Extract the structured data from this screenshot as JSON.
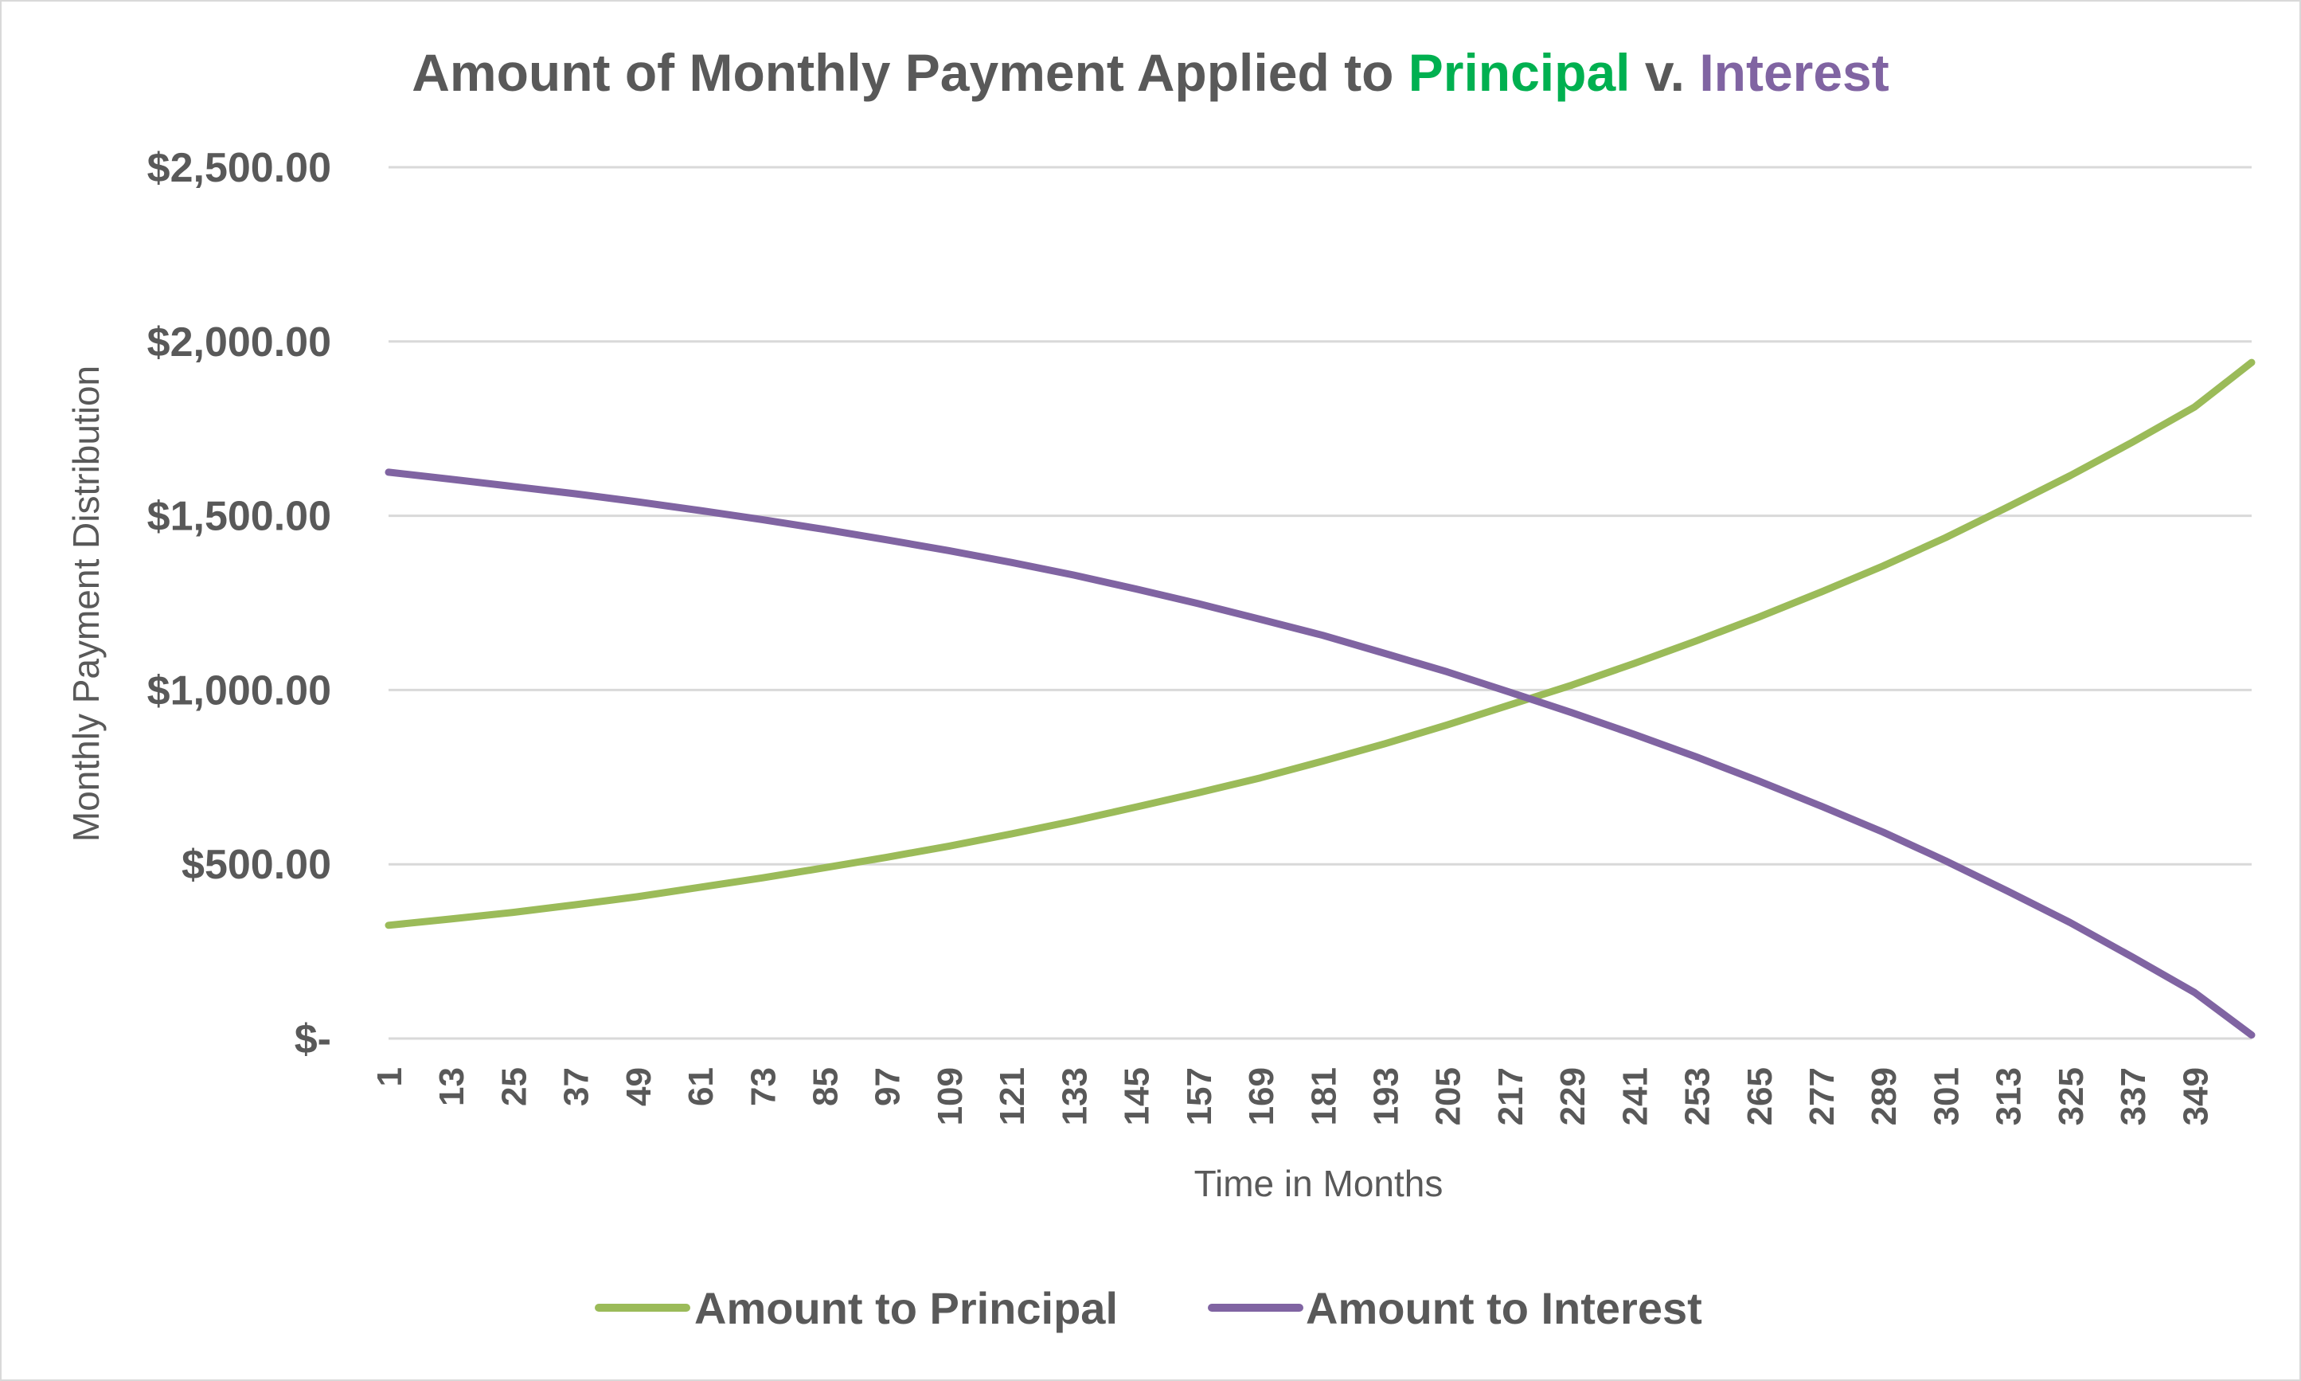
{
  "chart_data": {
    "type": "line",
    "title": {
      "parts": [
        {
          "text": "Amount of Monthly Payment Applied to ",
          "color": "#595959"
        },
        {
          "text": "Principal",
          "color": "#00b050"
        },
        {
          "text": " v. ",
          "color": "#595959"
        },
        {
          "text": "Interest",
          "color": "#8064a2"
        }
      ]
    },
    "xlabel": "Time in Months",
    "ylabel": "Monthly Payment Distribution",
    "xlim": [
      1,
      360
    ],
    "ylim": [
      0,
      2500
    ],
    "x_tick_labels": [
      "1",
      "13",
      "25",
      "37",
      "49",
      "61",
      "73",
      "85",
      "97",
      "109",
      "121",
      "133",
      "145",
      "157",
      "169",
      "181",
      "193",
      "205",
      "217",
      "229",
      "241",
      "253",
      "265",
      "277",
      "289",
      "301",
      "313",
      "325",
      "337",
      "349"
    ],
    "y_tick_values": [
      0,
      500,
      1000,
      1500,
      2000,
      2500
    ],
    "y_tick_labels": [
      "$-",
      "$500.00",
      "$1,000.00",
      "$1,500.00",
      "$2,000.00",
      "$2,500.00"
    ],
    "grid": true,
    "legend_position": "bottom",
    "series": [
      {
        "name": "Amount to Principal",
        "color": "#9bbb59",
        "x": [
          1,
          13,
          25,
          37,
          49,
          61,
          73,
          85,
          97,
          109,
          121,
          133,
          145,
          157,
          169,
          181,
          193,
          205,
          217,
          229,
          241,
          253,
          265,
          277,
          289,
          301,
          313,
          325,
          337,
          349,
          360
        ],
        "y": [
          325,
          343,
          362,
          384,
          407,
          434,
          461,
          490,
          520,
          552,
          587,
          624,
          664,
          705,
          748,
          796,
          846,
          900,
          957,
          1014,
          1076,
          1141,
          1209,
          1281,
          1356,
          1437,
          1525,
          1615,
          1711,
          1812,
          1940
        ]
      },
      {
        "name": "Amount to Interest",
        "color": "#8064a2",
        "x": [
          1,
          13,
          25,
          37,
          49,
          61,
          73,
          85,
          97,
          109,
          121,
          133,
          145,
          157,
          169,
          181,
          193,
          205,
          217,
          229,
          241,
          253,
          265,
          277,
          289,
          301,
          313,
          325,
          337,
          349,
          360
        ],
        "y": [
          1625,
          1605,
          1584,
          1563,
          1540,
          1515,
          1489,
          1461,
          1431,
          1400,
          1366,
          1330,
          1290,
          1248,
          1203,
          1157,
          1105,
          1052,
          994,
          935,
          873,
          808,
          739,
          667,
          592,
          510,
          423,
          333,
          234,
          132,
          10
        ]
      }
    ]
  }
}
